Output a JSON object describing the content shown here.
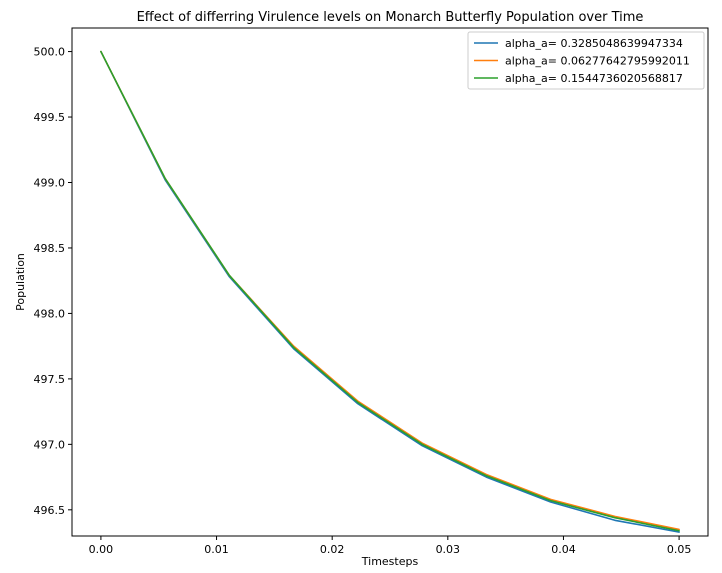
{
  "chart_data": {
    "type": "line",
    "title": "Effect of differring Virulence levels on Monarch Butterfly Population over Time",
    "xlabel": "Timesteps",
    "ylabel": "Population",
    "xlim": [
      -0.0025,
      0.0525
    ],
    "ylim": [
      496.3,
      500.18
    ],
    "xticks": [
      0.0,
      0.01,
      0.02,
      0.03,
      0.04,
      0.05
    ],
    "xtick_labels": [
      "0.00",
      "0.01",
      "0.02",
      "0.03",
      "0.04",
      "0.05"
    ],
    "yticks": [
      496.5,
      497.0,
      497.5,
      498.0,
      498.5,
      499.0,
      499.5,
      500.0
    ],
    "ytick_labels": [
      "496.5",
      "497.0",
      "497.5",
      "498.0",
      "498.5",
      "499.0",
      "499.5",
      "500.0"
    ],
    "grid": false,
    "legend_position": "top-right",
    "x": [
      0.0,
      0.00556,
      0.01111,
      0.01667,
      0.02222,
      0.02778,
      0.03333,
      0.03889,
      0.04444,
      0.05
    ],
    "series": [
      {
        "name": "alpha_a= 0.3285048639947334",
        "color": "#1f77b4",
        "values": [
          500.0,
          499.02,
          498.28,
          497.73,
          497.31,
          496.99,
          496.75,
          496.56,
          496.42,
          496.33
        ]
      },
      {
        "name": "alpha_a= 0.06277642795992011",
        "color": "#ff7f0e",
        "values": [
          500.0,
          499.03,
          498.29,
          497.75,
          497.33,
          497.01,
          496.77,
          496.58,
          496.45,
          496.35
        ]
      },
      {
        "name": "alpha_a= 0.1544736020568817",
        "color": "#2ca02c",
        "values": [
          500.0,
          499.03,
          498.29,
          497.74,
          497.32,
          497.0,
          496.76,
          496.57,
          496.44,
          496.34
        ]
      }
    ]
  }
}
